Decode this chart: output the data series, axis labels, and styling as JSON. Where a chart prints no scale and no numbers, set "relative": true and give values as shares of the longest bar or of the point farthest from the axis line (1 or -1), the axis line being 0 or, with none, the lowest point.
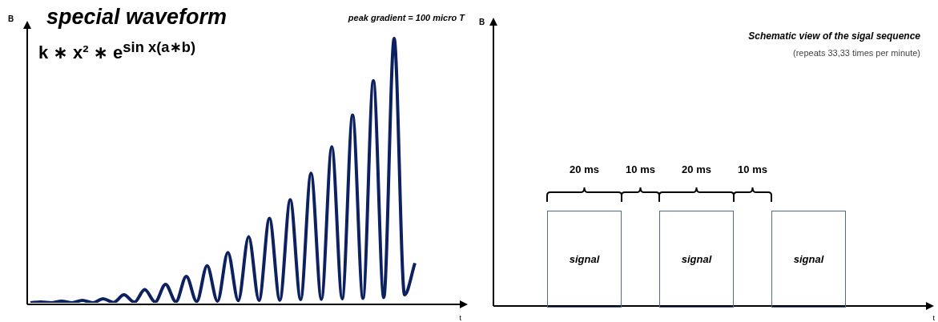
{
  "chart_data": [
    {
      "type": "line",
      "relative": true,
      "title": "special waveform",
      "subtitle": "k ∗ x² ∗ e$^{sin x}$$^{(a∗b)}$",
      "annotations": [
        "peak gradient = 100 micro T"
      ],
      "xlabel": "t",
      "ylabel": "B",
      "color": "#0d2060",
      "grid": false,
      "legend": false,
      "marker": "none",
      "categories": [
        null,
        null,
        null,
        null,
        null,
        null,
        null,
        null,
        null,
        null,
        null,
        null,
        null,
        null,
        null,
        null,
        null,
        null,
        null,
        null,
        null,
        null,
        null,
        null,
        null,
        null,
        null,
        null,
        null,
        null,
        null,
        null,
        null,
        null,
        null,
        null,
        null,
        null
      ],
      "values": [
        0,
        0.003,
        0,
        0.006,
        0,
        0.009,
        0,
        0.015,
        0.001,
        0.03,
        0.002,
        0.05,
        0.003,
        0.07,
        0.004,
        0.1,
        0.005,
        0.14,
        0.006,
        0.19,
        0.008,
        0.25,
        0.009,
        0.32,
        0.01,
        0.39,
        0.012,
        0.49,
        0.013,
        0.59,
        0.015,
        0.71,
        0.017,
        0.84,
        0.02,
        1,
        0.03,
        0.15
      ]
    },
    {
      "type": "other",
      "title": "Schematic view of the sigal sequence",
      "subtitle": "(repeats 33,33 times per minute)",
      "xlabel": "t",
      "ylabel": "B",
      "annotations": [
        "20 ms",
        "10 ms",
        "20 ms",
        "10 ms",
        "signal",
        "signal",
        "signal"
      ]
    }
  ]
}
